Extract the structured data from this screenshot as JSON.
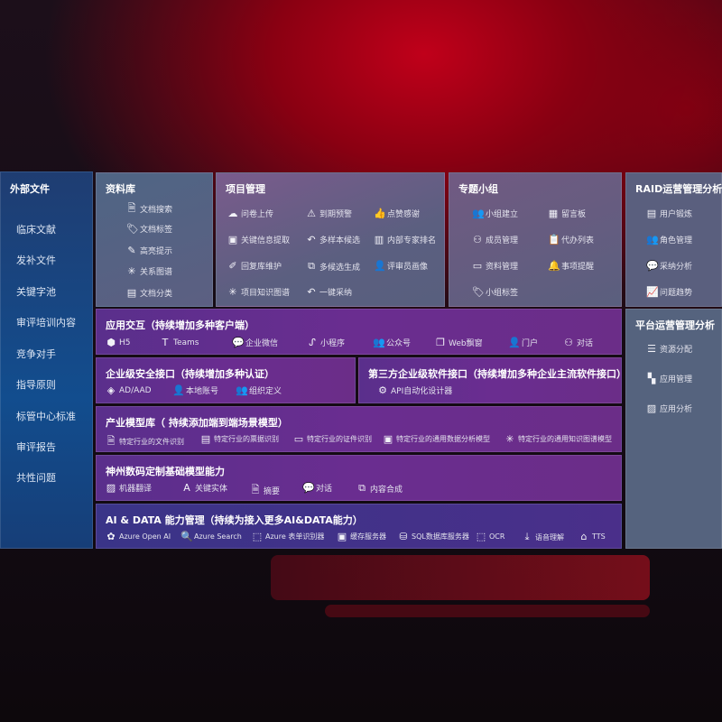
{
  "sidebar": {
    "title": "外部文件",
    "items": [
      "临床文献",
      "发补文件",
      "关键字池",
      "审评培训内容",
      "竞争对手",
      "指导原则",
      "标管中心标准",
      "审评报告",
      "共性问题"
    ]
  },
  "library": {
    "title": "资料库",
    "items": [
      {
        "icon": "document-search-icon",
        "label": "文档搜索"
      },
      {
        "icon": "tag-icon",
        "label": "文档标签"
      },
      {
        "icon": "pen-icon",
        "label": "高亮提示"
      },
      {
        "icon": "graph-icon",
        "label": "关系图谱"
      },
      {
        "icon": "document-category-icon",
        "label": "文档分类"
      }
    ]
  },
  "project": {
    "title": "项目管理",
    "items": [
      {
        "icon": "cloud-upload-icon",
        "label": "问卷上传"
      },
      {
        "icon": "alarm-icon",
        "label": "到期预警"
      },
      {
        "icon": "thumbs-up-icon",
        "label": "点赞感谢"
      },
      {
        "icon": "extract-icon",
        "label": "关键信息提取"
      },
      {
        "icon": "reply-icon",
        "label": "多样本候选"
      },
      {
        "icon": "ranking-icon",
        "label": "内部专家排名"
      },
      {
        "icon": "edit-icon",
        "label": "回复库维护"
      },
      {
        "icon": "puzzle-icon",
        "label": "多候选生成"
      },
      {
        "icon": "user-icon",
        "label": "评审员画像"
      },
      {
        "icon": "graph-icon",
        "label": "项目知识图谱"
      },
      {
        "icon": "reply-icon",
        "label": "一键采纳"
      }
    ]
  },
  "group": {
    "title": "专题小组",
    "items": [
      {
        "icon": "group-icon",
        "label": "小组建立"
      },
      {
        "icon": "bbs-icon",
        "label": "留言板"
      },
      {
        "icon": "user-add-icon",
        "label": "成员管理"
      },
      {
        "icon": "clipboard-icon",
        "label": "代办列表"
      },
      {
        "icon": "folder-icon",
        "label": "资料管理"
      },
      {
        "icon": "bell-icon",
        "label": "事项提醒"
      },
      {
        "icon": "tag-icon",
        "label": "小组标签"
      }
    ]
  },
  "raid": {
    "title": "RAID运营管理分析",
    "items": [
      {
        "icon": "id-card-icon",
        "label": "用户锻炼"
      },
      {
        "icon": "group-icon",
        "label": "角色管理"
      },
      {
        "icon": "qa-icon",
        "label": "采纳分析"
      },
      {
        "icon": "trend-icon",
        "label": "问题趋势"
      }
    ]
  },
  "platform": {
    "title": "平台运营管理分析",
    "items": [
      {
        "icon": "checklist-icon",
        "label": "资源分配"
      },
      {
        "icon": "apps-icon",
        "label": "应用管理"
      },
      {
        "icon": "chart-icon",
        "label": "应用分析"
      }
    ]
  },
  "interaction": {
    "title": "应用交互（持续增加多种客户端）",
    "items": [
      {
        "icon": "html5-icon",
        "label": "H5"
      },
      {
        "icon": "teams-icon",
        "label": "Teams"
      },
      {
        "icon": "wechat-icon",
        "label": "企业微信"
      },
      {
        "icon": "miniprogram-icon",
        "label": "小程序"
      },
      {
        "icon": "people-icon",
        "label": "公众号"
      },
      {
        "icon": "window-icon",
        "label": "Web飘窗"
      },
      {
        "icon": "portal-icon",
        "label": "门户"
      },
      {
        "icon": "chat-icon",
        "label": "对话"
      }
    ]
  },
  "security": {
    "title": "企业级安全接口（持续增加多种认证）",
    "items": [
      {
        "icon": "aad-icon",
        "label": "AD/AAD"
      },
      {
        "icon": "local-account-icon",
        "label": "本地账号"
      },
      {
        "icon": "org-icon",
        "label": "组织定义"
      }
    ]
  },
  "thirdparty": {
    "title": "第三方企业级软件接口（持续增加多种企业主流软件接口）",
    "items": [
      {
        "icon": "gear-icon",
        "label": "API自动化设计器"
      }
    ]
  },
  "industry": {
    "title": "产业模型库（ 持续添加端到端场景模型）",
    "items": [
      {
        "icon": "file-icon",
        "label": "特定行业的文件识别"
      },
      {
        "icon": "receipt-icon",
        "label": "特定行业的票据识别"
      },
      {
        "icon": "id-card-icon",
        "label": "特定行业的证件识别"
      },
      {
        "icon": "analysis-icon",
        "label": "特定行业的通用数据分析模型"
      },
      {
        "icon": "graph-icon",
        "label": "特定行业的通用知识图谱模型"
      }
    ]
  },
  "base": {
    "title": "神州数码定制基础模型能力",
    "items": [
      {
        "icon": "translate-icon",
        "label": "机器翻译"
      },
      {
        "icon": "entity-icon",
        "label": "关键实体"
      },
      {
        "icon": "summary-icon",
        "label": "摘要"
      },
      {
        "icon": "chat-icon",
        "label": "对话"
      },
      {
        "icon": "compose-icon",
        "label": "内容合成"
      }
    ]
  },
  "aidata": {
    "title": "AI & DATA 能力管理（持续为接入更多AI&DATA能力）",
    "items": [
      {
        "icon": "openai-icon",
        "label": "Azure Open AI"
      },
      {
        "icon": "search-icon",
        "label": "Azure Search"
      },
      {
        "icon": "form-recognizer-icon",
        "label": "Azure 表单识别器"
      },
      {
        "icon": "cache-icon",
        "label": "缓存服务器"
      },
      {
        "icon": "database-icon",
        "label": "SQL数据库服务器"
      },
      {
        "icon": "ocr-icon",
        "label": "OCR"
      },
      {
        "icon": "speech-icon",
        "label": "语音理解"
      },
      {
        "icon": "tts-icon",
        "label": "TTS"
      }
    ]
  }
}
